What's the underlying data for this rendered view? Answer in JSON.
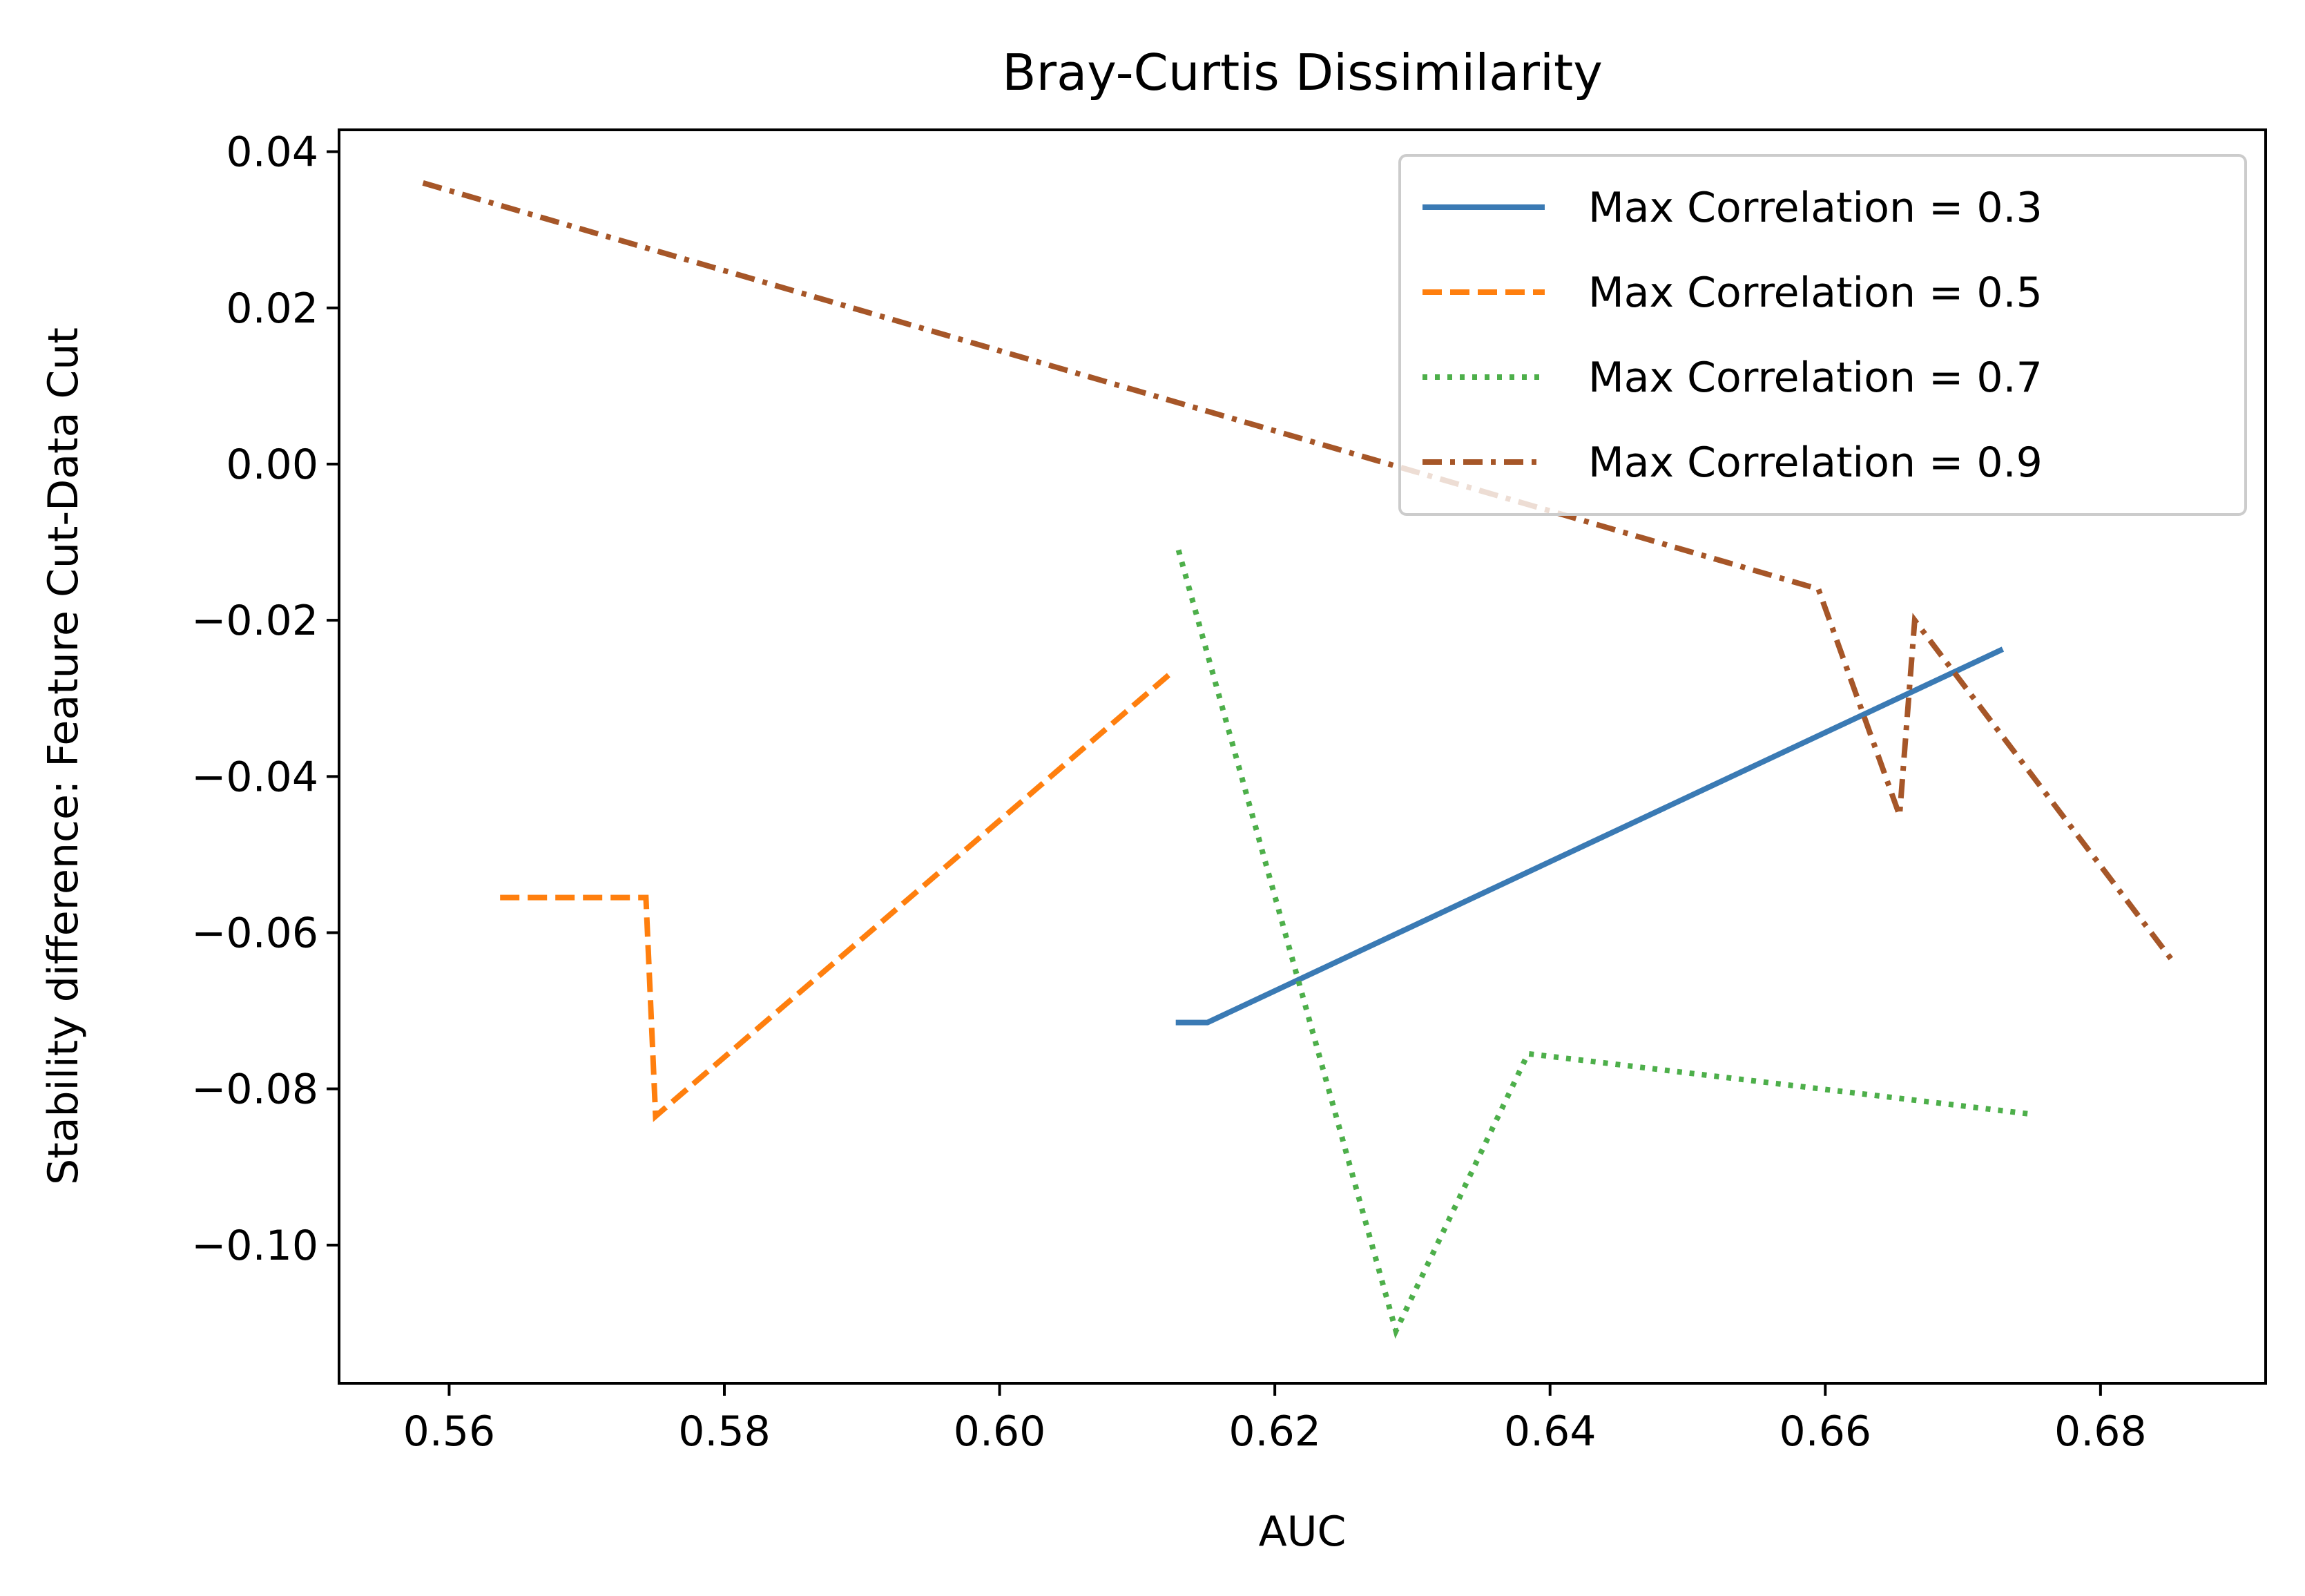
{
  "chart_data": {
    "type": "line",
    "title": "Bray-Curtis Dissimilarity",
    "xlabel": "AUC",
    "ylabel": "Stability difference: Feature Cut-Data Cut",
    "xlim": [
      0.552,
      0.692
    ],
    "ylim": [
      -0.1177,
      0.0428
    ],
    "xticks": [
      0.56,
      0.58,
      0.6,
      0.62,
      0.64,
      0.66,
      0.68
    ],
    "xtick_labels": [
      "0.56",
      "0.58",
      "0.60",
      "0.62",
      "0.64",
      "0.66",
      "0.68"
    ],
    "yticks": [
      0.04,
      0.02,
      0.0,
      -0.02,
      -0.04,
      -0.06,
      -0.08,
      -0.1
    ],
    "ytick_labels": [
      "0.04",
      "0.02",
      "0.00",
      "−0.02",
      "−0.04",
      "−0.06",
      "−0.08",
      "−0.10"
    ],
    "grid": false,
    "legend_position": "top-right",
    "series": [
      {
        "name": "Max Correlation = 0.3",
        "color": "#3a7ab4",
        "dash": "solid",
        "x": [
          0.6128,
          0.6151,
          0.6729
        ],
        "y": [
          -0.0715,
          -0.0715,
          -0.0237
        ]
      },
      {
        "name": "Max Correlation = 0.5",
        "color": "#ff7f0e",
        "dash": "dashed",
        "x": [
          0.5637,
          0.5743,
          0.575,
          0.6123
        ],
        "y": [
          -0.0555,
          -0.0555,
          -0.0835,
          -0.027
        ]
      },
      {
        "name": "Max Correlation = 0.7",
        "color": "#4daf4a",
        "dash": "dotted",
        "x": [
          0.613,
          0.6288,
          0.6384,
          0.6748
        ],
        "y": [
          -0.011,
          -0.111,
          -0.0755,
          -0.0832
        ]
      },
      {
        "name": "Max Correlation = 0.9",
        "color": "#a65628",
        "dash": "dashdot",
        "x": [
          0.5581,
          0.6595,
          0.6654,
          0.6665,
          0.6854
        ],
        "y": [
          0.036,
          -0.016,
          -0.045,
          -0.02,
          -0.064
        ]
      }
    ]
  }
}
